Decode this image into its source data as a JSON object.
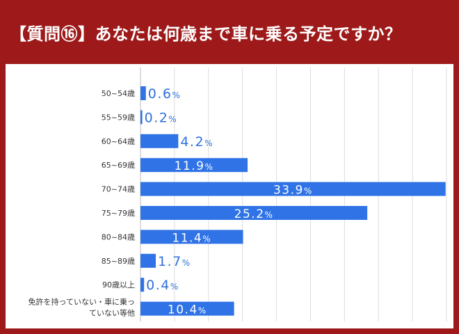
{
  "header": {
    "title": "【質問⑯】あなたは何歳まで車に乗る予定ですか？"
  },
  "colors": {
    "frame": "#9e1a1a",
    "bar": "#2f73e6",
    "grid": "#dddddd"
  },
  "chart_data": {
    "type": "bar",
    "orientation": "horizontal",
    "categories": [
      [
        "50~54歳"
      ],
      [
        "55~59歳"
      ],
      [
        "60~64歳"
      ],
      [
        "65~69歳"
      ],
      [
        "70~74歳"
      ],
      [
        "75~79歳"
      ],
      [
        "80~84歳"
      ],
      [
        "85~89歳"
      ],
      [
        "90歳以上"
      ],
      [
        "免許を持っていない・車に乗っ",
        "ていない等他"
      ]
    ],
    "values": [
      0.6,
      0.2,
      4.2,
      11.9,
      33.9,
      25.2,
      11.4,
      1.7,
      0.4,
      10.4
    ],
    "value_labels": [
      "0.6",
      "0.2",
      "4.2",
      "11.9",
      "33.9",
      "25.2",
      "11.4",
      "1.7",
      "0.4",
      "10.4"
    ],
    "unit": "%",
    "xlim": [
      0,
      34
    ],
    "grid": true,
    "legend": "none",
    "title": "",
    "xlabel": "",
    "ylabel": ""
  }
}
